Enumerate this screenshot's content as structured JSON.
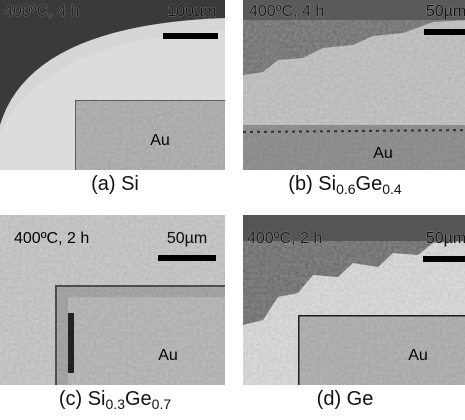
{
  "panels": [
    {
      "condition": "400ºC, 4 h",
      "scale": "100µm",
      "label": "Au",
      "caption": [
        {
          "text": "(a) Si",
          "sub": false
        }
      ]
    },
    {
      "condition": "400ºC, 4 h",
      "scale": "50µm",
      "label": "Au",
      "caption": [
        {
          "text": "(b) Si",
          "sub": false
        },
        {
          "text": "0.6",
          "sub": true
        },
        {
          "text": "Ge",
          "sub": false
        },
        {
          "text": "0.4",
          "sub": true
        }
      ]
    },
    {
      "condition": "400ºC, 2 h",
      "scale": "50µm",
      "label": "Au",
      "caption": [
        {
          "text": "(c) Si",
          "sub": false
        },
        {
          "text": "0.3",
          "sub": true
        },
        {
          "text": "Ge",
          "sub": false
        },
        {
          "text": "0.7",
          "sub": true
        }
      ]
    },
    {
      "condition": "400ºC, 2 h",
      "scale": "50µm",
      "label": "Au",
      "caption": [
        {
          "text": "(d) Ge",
          "sub": false
        }
      ]
    }
  ]
}
